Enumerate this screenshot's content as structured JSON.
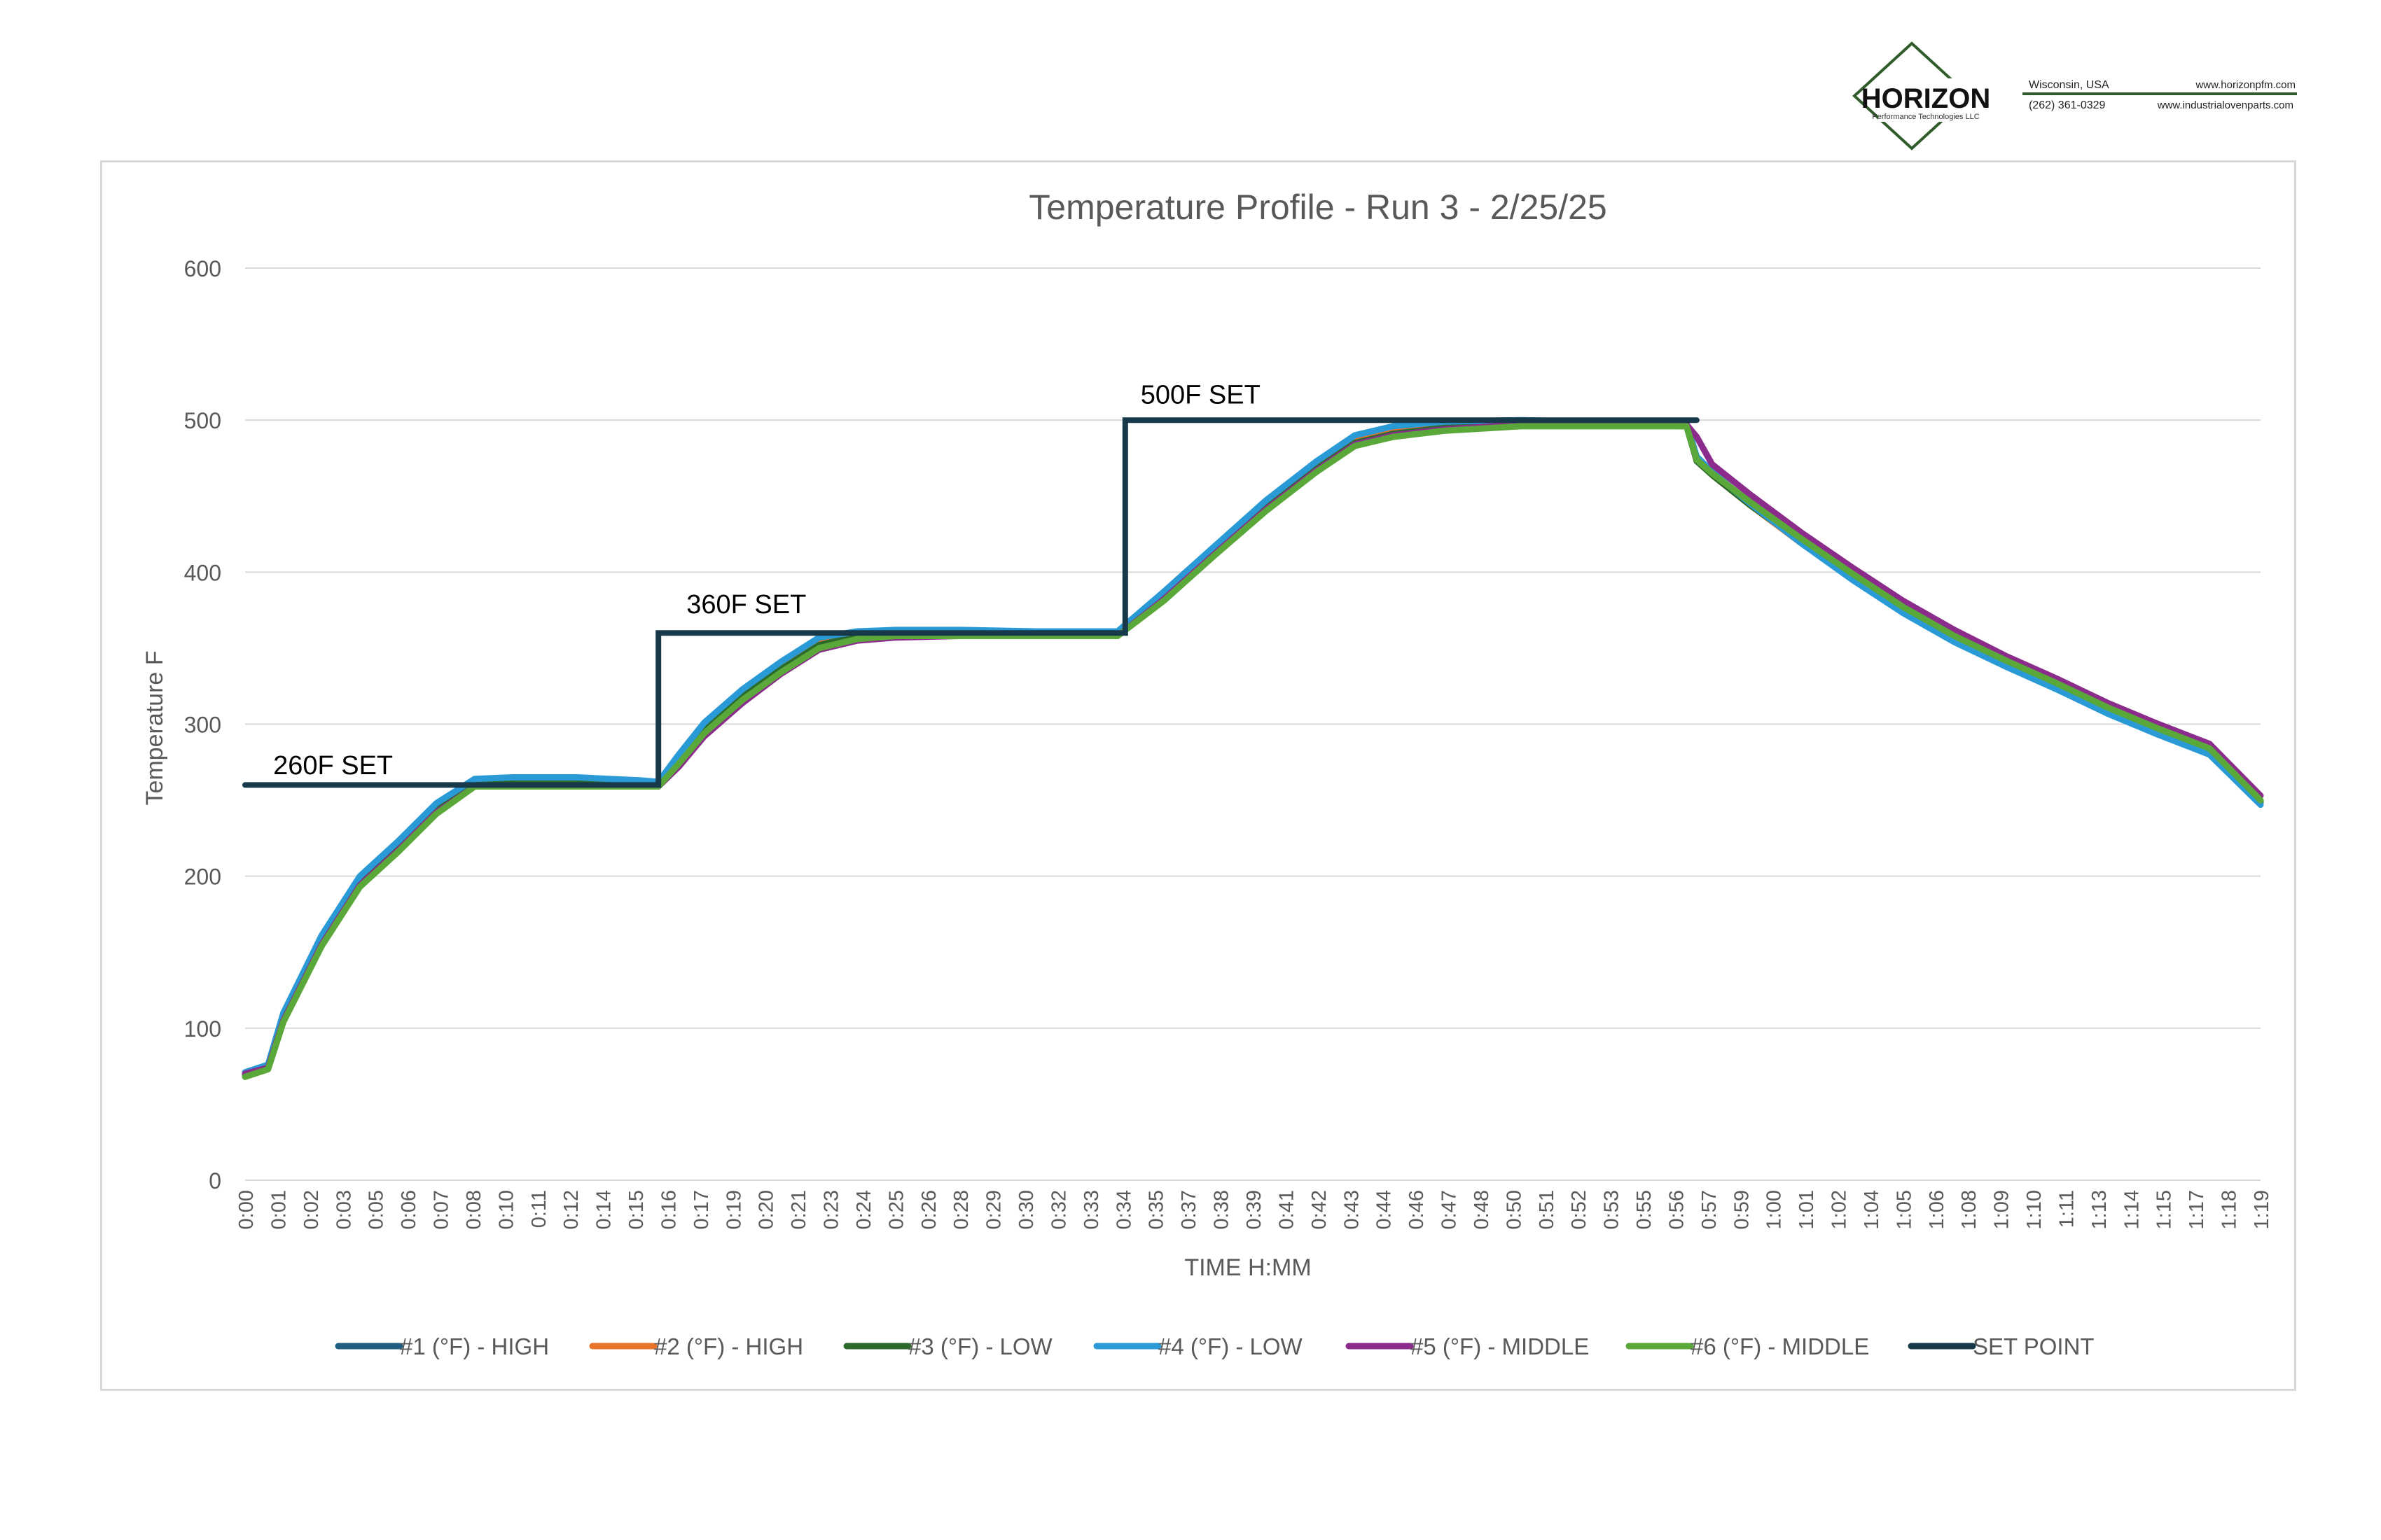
{
  "logo": {
    "brand": "HORIZON",
    "tagline": "Performance Technologies LLC",
    "location": "Wisconsin, USA",
    "phone": "(262) 361-0329",
    "website1": "www.horizonpfm.com",
    "website2": "www.industrialovenparts.com",
    "brand_color": "#2f5c2a"
  },
  "chart_data": {
    "type": "line",
    "title": "Temperature Profile - Run 3 -  2/25/25",
    "xlabel": "TIME H:MM",
    "ylabel": "Temperature F",
    "ylim": [
      0,
      600
    ],
    "yticks": [
      0,
      100,
      200,
      300,
      400,
      500,
      600
    ],
    "xlim_minutes": [
      0,
      79
    ],
    "xtick_labels": [
      "0:00",
      "0:01",
      "0:02",
      "0:03",
      "0:05",
      "0:06",
      "0:07",
      "0:08",
      "0:10",
      "0:11",
      "0:12",
      "0:14",
      "0:15",
      "0:16",
      "0:17",
      "0:19",
      "0:20",
      "0:21",
      "0:23",
      "0:24",
      "0:25",
      "0:26",
      "0:28",
      "0:29",
      "0:30",
      "0:32",
      "0:33",
      "0:34",
      "0:35",
      "0:37",
      "0:38",
      "0:39",
      "0:41",
      "0:42",
      "0:43",
      "0:44",
      "0:46",
      "0:47",
      "0:48",
      "0:50",
      "0:51",
      "0:52",
      "0:53",
      "0:55",
      "0:56",
      "0:57",
      "0:59",
      "1:00",
      "1:01",
      "1:02",
      "1:04",
      "1:05",
      "1:06",
      "1:08",
      "1:09",
      "1:10",
      "1:11",
      "1:13",
      "1:14",
      "1:15",
      "1:17",
      "1:18",
      "1:19"
    ],
    "grid": true,
    "legend_position": "bottom",
    "series": [
      {
        "name": "#1 (°F) - HIGH",
        "color": "#1f5f82",
        "x": [
          0,
          0.9,
          1.5,
          3,
          4.5,
          6,
          7.5,
          9,
          10.5,
          13,
          15.5,
          16.2,
          17,
          18,
          19.5,
          21,
          22.5,
          24,
          25.5,
          28,
          31,
          34.2,
          36,
          38,
          40,
          42,
          43.5,
          45,
          47,
          50,
          53,
          56.5,
          56.9,
          57.5,
          59,
          61,
          63,
          65,
          67,
          69,
          71,
          73,
          75,
          77,
          79
        ],
        "values": [
          70,
          75,
          108,
          158,
          197,
          220,
          245,
          263,
          262,
          262,
          261,
          262,
          278,
          298,
          320,
          338,
          354,
          360,
          361,
          361,
          360,
          360,
          385,
          415,
          444,
          470,
          487,
          493,
          497,
          499,
          499,
          498,
          475,
          465,
          445,
          420,
          397,
          375,
          356,
          340,
          325,
          309,
          295,
          282,
          249
        ]
      },
      {
        "name": "#2 (°F) - HIGH",
        "color": "#e8732a",
        "x": [
          0,
          0.9,
          1.5,
          3,
          4.5,
          6,
          7.5,
          9,
          10.5,
          13,
          15.5,
          16.2,
          17,
          18,
          19.5,
          21,
          22.5,
          24,
          25.5,
          28,
          31,
          34.2,
          36,
          38,
          40,
          42,
          43.5,
          45,
          47,
          50,
          53,
          56.5,
          56.9,
          57.5,
          59,
          61,
          63,
          65,
          67,
          69,
          71,
          73,
          75,
          77,
          79
        ],
        "values": [
          69,
          74,
          107,
          157,
          196,
          219,
          244,
          262,
          262,
          262,
          261,
          262,
          277,
          297,
          319,
          337,
          353,
          359,
          360,
          360,
          360,
          360,
          384,
          414,
          443,
          469,
          486,
          492,
          496,
          498,
          498,
          497,
          474,
          464,
          444,
          419,
          396,
          374,
          355,
          339,
          324,
          308,
          294,
          281,
          248
        ]
      },
      {
        "name": "#3 (°F) - LOW",
        "color": "#2b6a2b",
        "x": [
          0,
          0.9,
          1.5,
          3,
          4.5,
          6,
          7.5,
          9,
          10.5,
          13,
          15.5,
          16.2,
          17,
          18,
          19.5,
          21,
          22.5,
          24,
          25.5,
          28,
          31,
          34.2,
          36,
          38,
          40,
          42,
          43.5,
          45,
          47,
          50,
          53,
          56.5,
          56.9,
          57.5,
          59,
          61,
          63,
          65,
          67,
          69,
          71,
          73,
          75,
          77,
          79
        ],
        "values": [
          69,
          74,
          106,
          156,
          195,
          218,
          243,
          261,
          261,
          261,
          260,
          261,
          276,
          296,
          318,
          336,
          352,
          358,
          359,
          359,
          359,
          359,
          383,
          413,
          442,
          468,
          485,
          491,
          495,
          497,
          497,
          496,
          473,
          464,
          444,
          420,
          397,
          375,
          356,
          340,
          325,
          309,
          295,
          282,
          249
        ]
      },
      {
        "name": "#4 (°F) - LOW",
        "color": "#2a9ad6",
        "x": [
          0,
          0.9,
          1.5,
          3,
          4.5,
          6,
          7.5,
          9,
          10.5,
          13,
          15.5,
          16.2,
          17,
          18,
          19.5,
          21,
          22.5,
          24,
          25.5,
          28,
          31,
          34.2,
          36,
          38,
          40,
          42,
          43.5,
          45,
          47,
          50,
          53,
          56.5,
          56.9,
          57.5,
          59,
          61,
          63,
          65,
          67,
          69,
          71,
          73,
          75,
          77,
          79
        ],
        "values": [
          71,
          76,
          110,
          161,
          200,
          223,
          248,
          264,
          265,
          265,
          263,
          262,
          280,
          301,
          323,
          341,
          357,
          361,
          362,
          362,
          361,
          361,
          387,
          417,
          447,
          473,
          490,
          496,
          499,
          500,
          499,
          498,
          476,
          466,
          445,
          419,
          395,
          373,
          354,
          338,
          323,
          307,
          293,
          280,
          247
        ]
      },
      {
        "name": "#5 (°F) - MIDDLE",
        "color": "#8b2c8c",
        "x": [
          0,
          0.9,
          1.5,
          3,
          4.5,
          6,
          7.5,
          9,
          10.5,
          13,
          15.5,
          16.2,
          17,
          18,
          19.5,
          21,
          22.5,
          24,
          25.5,
          28,
          31,
          34.2,
          36,
          38,
          40,
          42,
          43.5,
          45,
          47,
          50,
          53,
          56.5,
          56.9,
          57.5,
          59,
          61,
          63,
          65,
          67,
          69,
          71,
          73,
          75,
          77,
          79
        ],
        "values": [
          70,
          74,
          105,
          155,
          194,
          217,
          242,
          259,
          259,
          259,
          259,
          259,
          272,
          292,
          314,
          333,
          349,
          355,
          357,
          358,
          358,
          358,
          382,
          412,
          441,
          467,
          484,
          490,
          494,
          497,
          497,
          497,
          489,
          471,
          451,
          426,
          403,
          381,
          362,
          345,
          330,
          314,
          300,
          287,
          253
        ]
      },
      {
        "name": "#6 (°F) - MIDDLE",
        "color": "#5aa83a",
        "x": [
          0,
          0.9,
          1.5,
          3,
          4.5,
          6,
          7.5,
          9,
          10.5,
          13,
          15.5,
          16.2,
          17,
          18,
          19.5,
          21,
          22.5,
          24,
          25.5,
          28,
          31,
          34.2,
          36,
          38,
          40,
          42,
          43.5,
          45,
          47,
          50,
          53,
          56.5,
          56.9,
          57.5,
          59,
          61,
          63,
          65,
          67,
          69,
          71,
          73,
          75,
          77,
          79
        ],
        "values": [
          68,
          73,
          104,
          154,
          193,
          216,
          241,
          259,
          259,
          259,
          259,
          259,
          274,
          294,
          316,
          334,
          350,
          356,
          358,
          358,
          358,
          358,
          381,
          411,
          440,
          466,
          483,
          489,
          493,
          496,
          496,
          496,
          474,
          465,
          446,
          422,
          399,
          377,
          358,
          342,
          327,
          311,
          297,
          284,
          250
        ]
      },
      {
        "name": "SET POINT",
        "color": "#17394a",
        "x": [
          0,
          16.2,
          16.2,
          34.5,
          34.5,
          56.9
        ],
        "values": [
          260,
          260,
          360,
          360,
          500,
          500
        ]
      }
    ],
    "annotations": [
      {
        "text": "260F SET",
        "x": 1.1,
        "y": 267
      },
      {
        "text": "360F SET",
        "x": 17.3,
        "y": 373
      },
      {
        "text": "500F SET",
        "x": 35.1,
        "y": 511
      }
    ]
  }
}
